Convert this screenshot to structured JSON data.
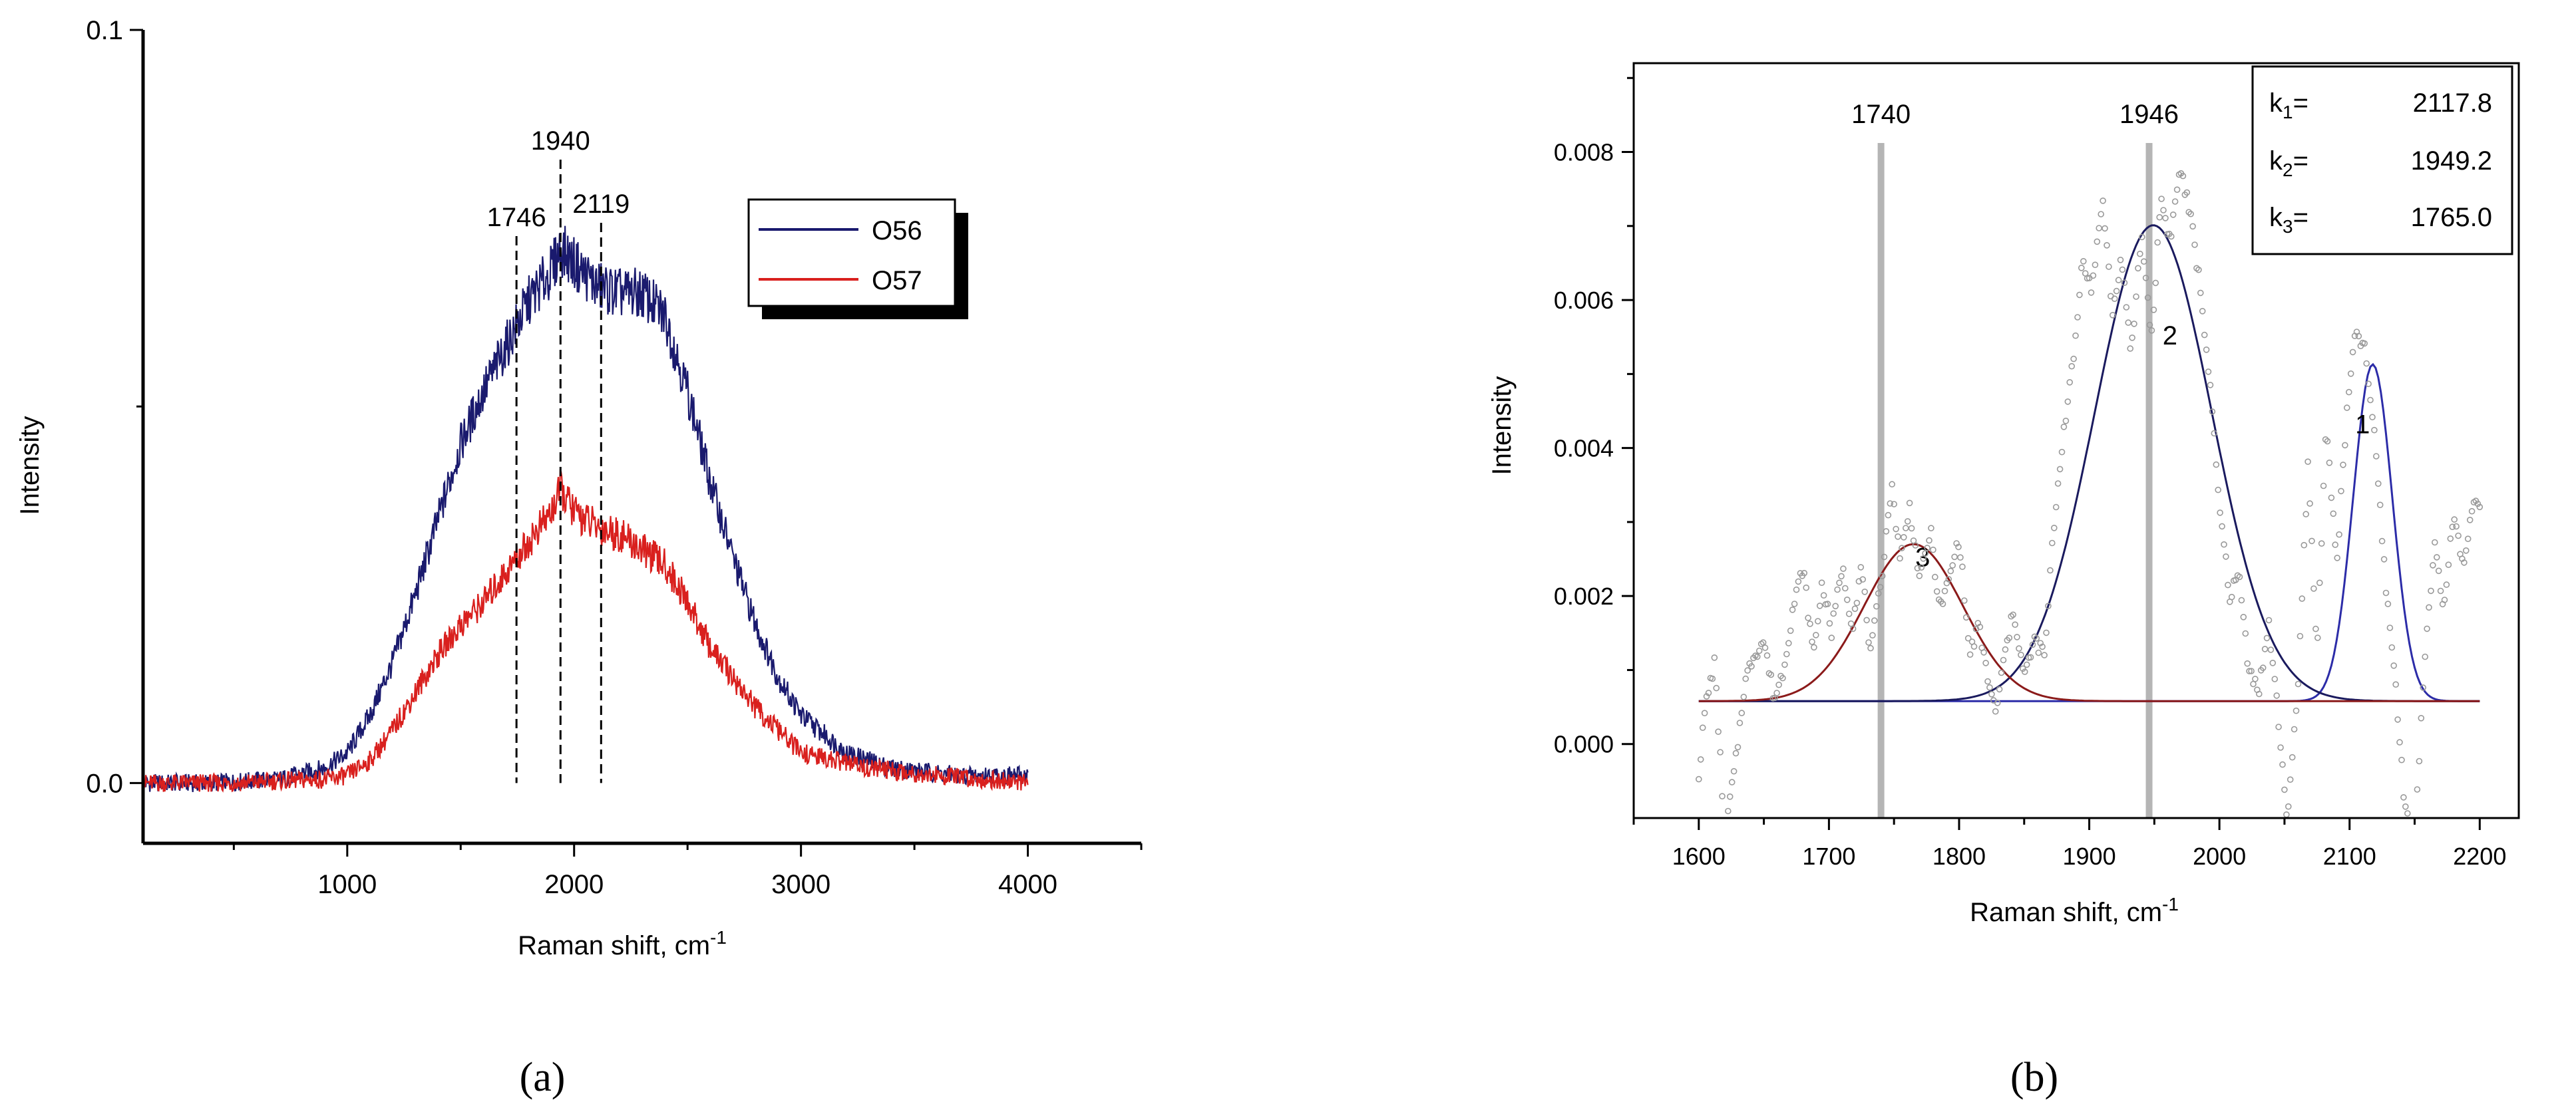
{
  "chart_data": [
    {
      "panel": "a",
      "type": "line",
      "caption": "(a)",
      "title": "",
      "xlabel": "Raman shift, cm",
      "xlabel_sup": "-1",
      "ylabel": "Intensity",
      "xlim": [
        100,
        4500
      ],
      "ylim": [
        -0.008,
        0.1
      ],
      "xticks": [
        1000,
        2000,
        3000,
        4000
      ],
      "xtick_labels": [
        "1000",
        "2000",
        "3000",
        "4000"
      ],
      "yticks": [
        0.0,
        0.1
      ],
      "ytick_labels": [
        "0.0",
        "0.1"
      ],
      "grid": false,
      "legend_position": "top-right",
      "series": [
        {
          "name": "O56",
          "color": "#1a1a6e",
          "x": [
            100,
            400,
            700,
            900,
            1000,
            1100,
            1200,
            1300,
            1400,
            1500,
            1600,
            1700,
            1800,
            1900,
            1940,
            2000,
            2100,
            2200,
            2300,
            2400,
            2500,
            2600,
            2700,
            2800,
            2900,
            3000,
            3200,
            3400,
            3700,
            4000
          ],
          "y": [
            0.0,
            0.0,
            0.0005,
            0.002,
            0.004,
            0.009,
            0.016,
            0.025,
            0.035,
            0.045,
            0.052,
            0.058,
            0.064,
            0.068,
            0.071,
            0.069,
            0.066,
            0.065,
            0.065,
            0.062,
            0.052,
            0.04,
            0.03,
            0.021,
            0.014,
            0.009,
            0.004,
            0.002,
            0.001,
            0.001
          ]
        },
        {
          "name": "O57",
          "color": "#d9201e",
          "x": [
            100,
            500,
            900,
            1000,
            1100,
            1200,
            1300,
            1400,
            1500,
            1600,
            1700,
            1800,
            1900,
            1940,
            2000,
            2100,
            2200,
            2300,
            2400,
            2500,
            2600,
            2700,
            2800,
            2900,
            3000,
            3300,
            3600,
            4000
          ],
          "y": [
            0.0,
            0.0,
            0.0005,
            0.001,
            0.003,
            0.007,
            0.012,
            0.017,
            0.021,
            0.024,
            0.028,
            0.032,
            0.036,
            0.039,
            0.036,
            0.034,
            0.033,
            0.031,
            0.029,
            0.024,
            0.018,
            0.014,
            0.01,
            0.007,
            0.004,
            0.002,
            0.001,
            0.0
          ]
        }
      ],
      "markers": [
        {
          "x": 1746,
          "label": "1746"
        },
        {
          "x": 1940,
          "label": "1940"
        },
        {
          "x": 2119,
          "label": "2119"
        }
      ]
    },
    {
      "panel": "b",
      "type": "line",
      "caption": "(b)",
      "title": "",
      "xlabel": "Raman shift, cm",
      "xlabel_sup": "-1",
      "ylabel": "Intensity",
      "xlim": [
        1550,
        2230
      ],
      "ylim": [
        -0.001,
        0.0092
      ],
      "xticks": [
        1600,
        1700,
        1800,
        1900,
        2000,
        2100,
        2200
      ],
      "xtick_labels": [
        "1600",
        "1700",
        "1800",
        "1900",
        "2000",
        "2100",
        "2200"
      ],
      "yticks": [
        0.0,
        0.002,
        0.004,
        0.006,
        0.008
      ],
      "ytick_labels": [
        "0.000",
        "0.002",
        "0.004",
        "0.006",
        "0.008"
      ],
      "grid": false,
      "baseline": 0.00058,
      "experimental": {
        "color": "#999999",
        "x": [
          1600,
          1605,
          1612,
          1620,
          1628,
          1635,
          1642,
          1650,
          1658,
          1665,
          1672,
          1680,
          1688,
          1695,
          1702,
          1710,
          1718,
          1725,
          1732,
          1740,
          1748,
          1755,
          1762,
          1770,
          1778,
          1785,
          1792,
          1800,
          1808,
          1815,
          1822,
          1828,
          1835,
          1842,
          1850,
          1858,
          1866,
          1872,
          1880,
          1888,
          1895,
          1902,
          1910,
          1918,
          1925,
          1932,
          1940,
          1948,
          1955,
          1962,
          1970,
          1978,
          1985,
          1992,
          2000,
          2008,
          2015,
          2022,
          2030,
          2038,
          2045,
          2052,
          2060,
          2068,
          2075,
          2082,
          2090,
          2098,
          2105,
          2112,
          2120,
          2128,
          2135,
          2142,
          2150,
          2158,
          2165,
          2172,
          2180,
          2188,
          2195,
          2200
        ],
        "y": [
          -0.0004,
          0.0005,
          0.0011,
          -0.0012,
          -0.0003,
          0.0008,
          0.0012,
          0.0014,
          0.0006,
          0.001,
          0.0018,
          0.0024,
          0.0012,
          0.0022,
          0.0015,
          0.0024,
          0.0016,
          0.0024,
          0.0012,
          0.0022,
          0.0035,
          0.0025,
          0.0032,
          0.0022,
          0.0029,
          0.0018,
          0.0022,
          0.0028,
          0.0012,
          0.0016,
          0.0009,
          0.0004,
          0.0012,
          0.0018,
          0.0009,
          0.0014,
          0.0012,
          0.0028,
          0.0042,
          0.0052,
          0.0066,
          0.0061,
          0.0074,
          0.0058,
          0.0066,
          0.0052,
          0.0069,
          0.0055,
          0.0074,
          0.0068,
          0.0078,
          0.0071,
          0.0062,
          0.005,
          0.0032,
          0.002,
          0.0023,
          0.0011,
          0.0007,
          0.0016,
          0.0004,
          -0.001,
          0.0006,
          0.0038,
          0.0012,
          0.0044,
          0.0024,
          0.0045,
          0.0056,
          0.0053,
          0.004,
          0.0021,
          0.0009,
          -0.0008,
          -0.0012,
          0.0012,
          0.0027,
          0.0018,
          0.0031,
          0.0024,
          0.0033,
          0.0032
        ]
      },
      "fits": [
        {
          "label": "1",
          "center": 2117.8,
          "amplitude": 0.00455,
          "sigma": 15,
          "color": "#2c2ca8"
        },
        {
          "label": "2",
          "center": 1949.2,
          "amplitude": 0.00643,
          "sigma": 45,
          "color": "#1a1a5e"
        },
        {
          "label": "3",
          "center": 1765.0,
          "amplitude": 0.00212,
          "sigma": 38,
          "color": "#8b1a1a"
        }
      ],
      "fit_labels_at": [
        {
          "label": "1",
          "x": 2110,
          "y": 0.0042
        },
        {
          "label": "2",
          "x": 1962,
          "y": 0.0054
        },
        {
          "label": "3",
          "x": 1772,
          "y": 0.0024
        }
      ],
      "markers": [
        {
          "x": 1740,
          "label": "1740"
        },
        {
          "x": 1946,
          "label": "1946"
        }
      ],
      "annotation_box": [
        {
          "name": "k",
          "sub": "1",
          "value": "2117.8"
        },
        {
          "name": "k",
          "sub": "2",
          "value": "1949.2"
        },
        {
          "name": "k",
          "sub": "3",
          "value": "1765.0"
        }
      ]
    }
  ]
}
